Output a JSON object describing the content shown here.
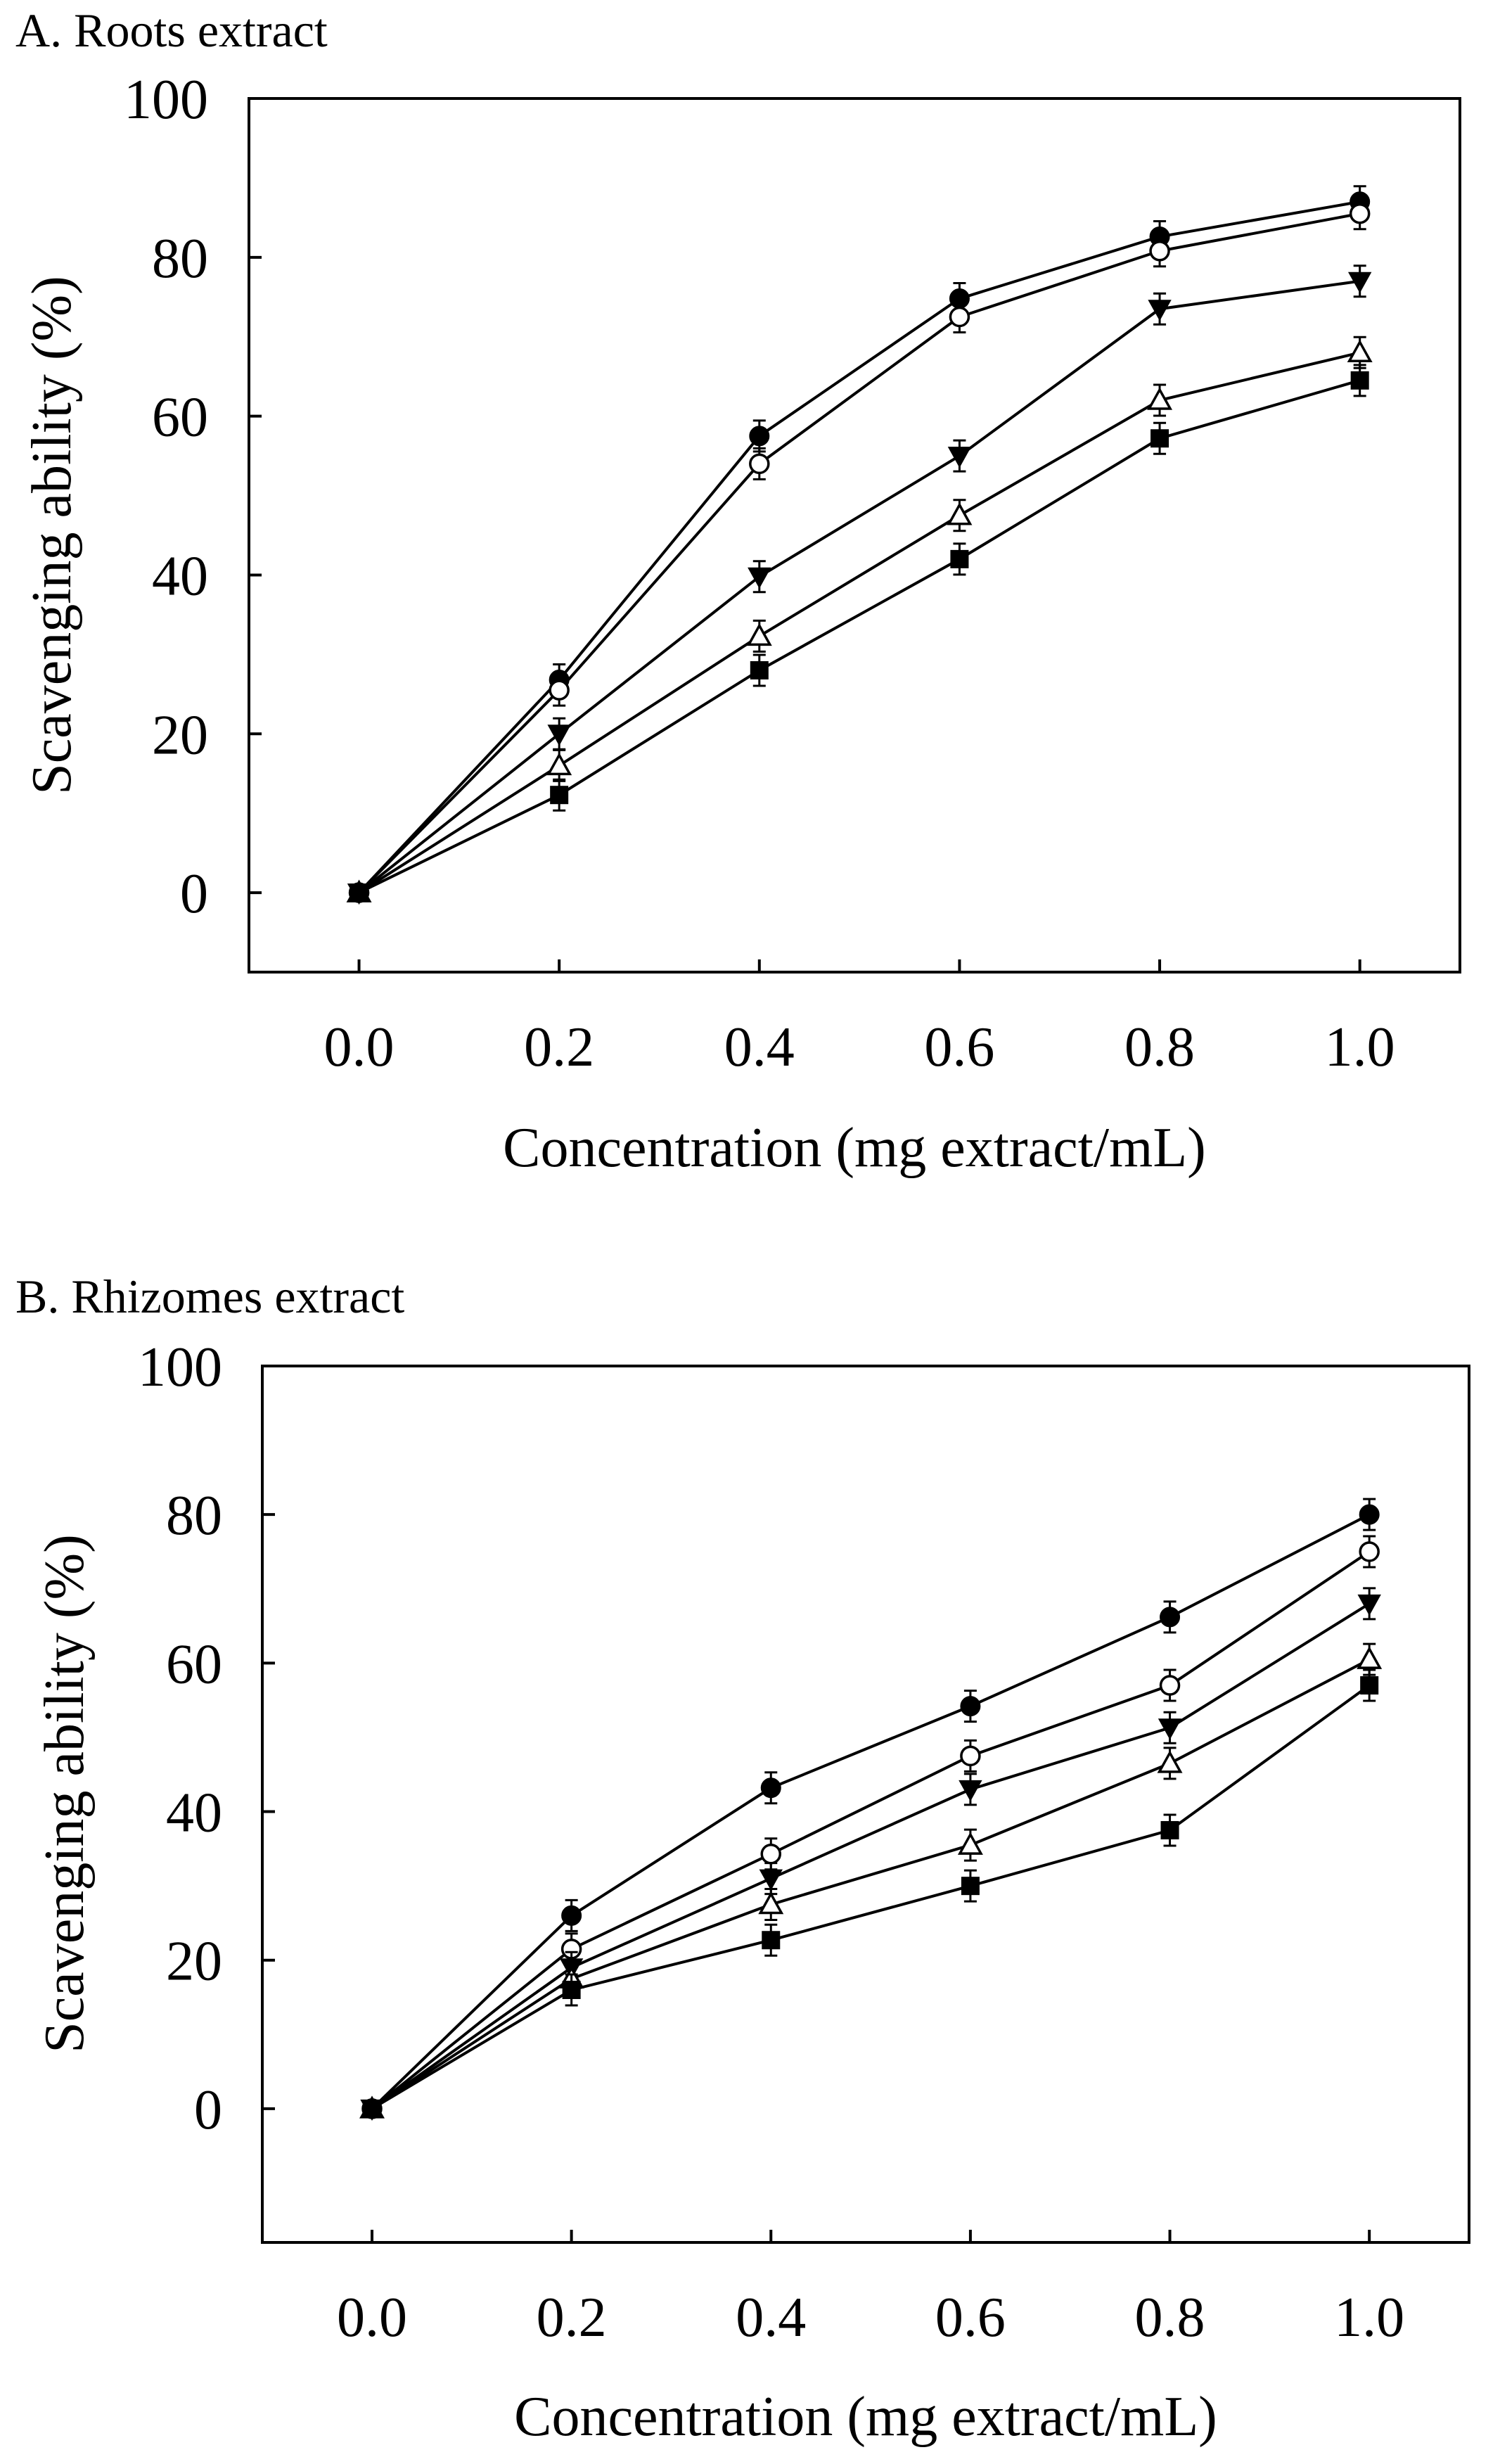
{
  "chart_data": [
    {
      "type": "line",
      "title": "A. Roots extract",
      "xlabel": "Concentration (mg extract/mL)",
      "ylabel": "Scavenging ability (%)",
      "xlim": [
        -0.11,
        1.1
      ],
      "ylim": [
        -10,
        100
      ],
      "x": [
        0.0,
        0.2,
        0.4,
        0.6,
        0.8,
        1.0
      ],
      "x_ticks": [
        "0.0",
        "0.2",
        "0.4",
        "0.6",
        "0.8",
        "1.0"
      ],
      "y_ticks": [
        "0",
        "20",
        "40",
        "60",
        "80",
        "100"
      ],
      "grid": false,
      "series": [
        {
          "name": "filled circle",
          "marker": "circle-filled",
          "values": [
            0,
            26.8,
            57.5,
            74.8,
            82.6,
            87.0
          ]
        },
        {
          "name": "open circle",
          "marker": "circle-open",
          "values": [
            0,
            25.5,
            54.0,
            72.5,
            80.8,
            85.5
          ]
        },
        {
          "name": "filled triangle",
          "marker": "triangle-down-filled",
          "values": [
            0,
            20.0,
            39.8,
            55.0,
            73.5,
            77.0
          ]
        },
        {
          "name": "open triangle",
          "marker": "triangle-up-open",
          "values": [
            0,
            16.0,
            32.3,
            47.5,
            62.0,
            68.0
          ]
        },
        {
          "name": "filled square",
          "marker": "square-filled",
          "values": [
            0,
            12.3,
            28.0,
            42.0,
            57.2,
            64.5
          ]
        }
      ]
    },
    {
      "type": "line",
      "title": "B. Rhizomes extract",
      "xlabel": "Concentration (mg extract/mL)",
      "ylabel": "Scavenging ability (%)",
      "xlim": [
        -0.11,
        1.1
      ],
      "ylim": [
        -18,
        100
      ],
      "x": [
        0.0,
        0.2,
        0.4,
        0.6,
        0.8,
        1.0
      ],
      "x_ticks": [
        "0.0",
        "0.2",
        "0.4",
        "0.6",
        "0.8",
        "1.0"
      ],
      "y_ticks": [
        "0",
        "20",
        "40",
        "60",
        "80",
        "100"
      ],
      "grid": false,
      "series": [
        {
          "name": "filled circle",
          "marker": "circle-filled",
          "values": [
            0,
            26.0,
            43.2,
            54.2,
            66.2,
            80.0
          ]
        },
        {
          "name": "open circle",
          "marker": "circle-open",
          "values": [
            0,
            21.5,
            34.3,
            47.5,
            57.0,
            75.0
          ]
        },
        {
          "name": "filled triangle",
          "marker": "triangle-down-filled",
          "values": [
            0,
            19.0,
            31.0,
            43.0,
            51.3,
            68.0
          ]
        },
        {
          "name": "open triangle",
          "marker": "triangle-up-open",
          "values": [
            0,
            17.5,
            27.5,
            35.5,
            46.5,
            60.5
          ]
        },
        {
          "name": "filled square",
          "marker": "square-filled",
          "values": [
            0,
            16.0,
            22.7,
            30.0,
            37.5,
            57.0
          ]
        }
      ]
    }
  ]
}
